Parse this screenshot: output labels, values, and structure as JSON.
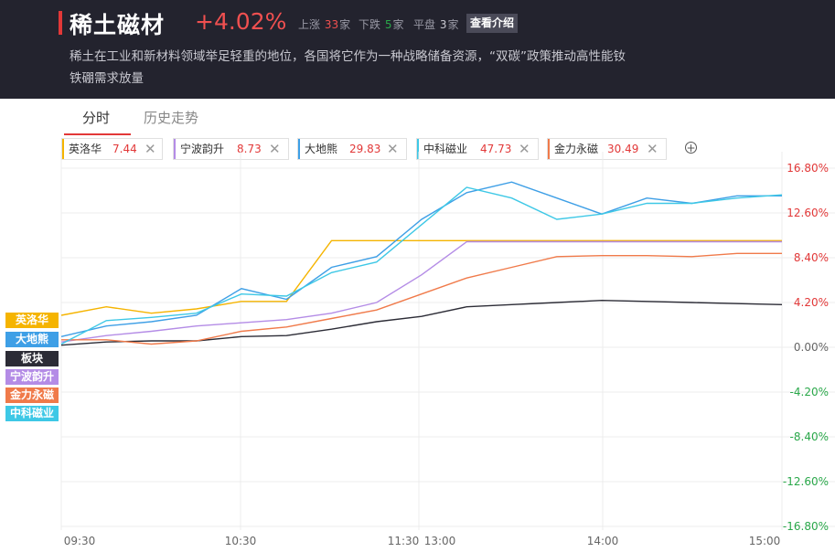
{
  "header": {
    "title": "稀土磁材",
    "change_pct": "+4.02%",
    "up_label": "上涨",
    "up_count": "33",
    "down_label": "下跌",
    "down_count": "5",
    "flat_label": "平盘",
    "flat_count": "3",
    "unit": "家",
    "intro_button": "查看介绍",
    "description": "稀土在工业和新材料领域举足轻重的地位，各国将它作为一种战略储备资源，“双碳”政策推动高性能钕铁硼需求放量"
  },
  "tabs": [
    {
      "label": "分时",
      "active": true
    },
    {
      "label": "历史走势",
      "active": false
    }
  ],
  "stocks": [
    {
      "name": "英洛华",
      "price": "7.44",
      "color": "#f5b400"
    },
    {
      "name": "宁波韵升",
      "price": "8.73",
      "color": "#b48ce6"
    },
    {
      "name": "大地熊",
      "price": "29.83",
      "color": "#3e9fe6"
    },
    {
      "name": "中科磁业",
      "price": "47.73",
      "color": "#3ec8e6"
    },
    {
      "name": "金力永磁",
      "price": "30.49",
      "color": "#f07a4a"
    }
  ],
  "close_icon": "close-icon",
  "add_icon": "add-circle-icon",
  "legend": [
    {
      "label": "英洛华",
      "color": "#f5b400"
    },
    {
      "label": "大地熊",
      "color": "#3e9fe6"
    },
    {
      "label": "板块",
      "color": "#2c2c36"
    },
    {
      "label": "宁波韵升",
      "color": "#b48ce6"
    },
    {
      "label": "金力永磁",
      "color": "#f07a4a"
    },
    {
      "label": "中科磁业",
      "color": "#3ec8e6"
    }
  ],
  "chart_data": {
    "type": "line",
    "y_tick_labels": [
      "16.80%",
      "12.60%",
      "8.40%",
      "4.20%",
      "0.00%",
      "-4.20%",
      "-8.40%",
      "-12.60%",
      "-16.80%"
    ],
    "y_ticks": [
      16.8,
      12.6,
      8.4,
      4.2,
      0,
      -4.2,
      -8.4,
      -12.6,
      -16.8
    ],
    "ylim": [
      -16.8,
      16.8
    ],
    "x_tick_labels": [
      "09:30",
      "10:30",
      "11:30",
      "13:00",
      "14:00",
      "15:00"
    ],
    "x": [
      "09:30",
      "09:45",
      "10:00",
      "10:15",
      "10:30",
      "10:45",
      "11:00",
      "11:15",
      "11:30/13:00",
      "13:15",
      "13:30",
      "13:45",
      "14:00",
      "14:15",
      "14:30",
      "14:45",
      "15:00"
    ],
    "colors": {
      "up": "#e23838",
      "zero": "#666666",
      "down": "#2aa84a"
    },
    "series": [
      {
        "name": "板块",
        "color": "#2c2c36",
        "values": [
          0.2,
          0.5,
          0.6,
          0.6,
          1.0,
          1.1,
          1.7,
          2.4,
          2.9,
          3.8,
          4.0,
          4.2,
          4.4,
          4.3,
          4.2,
          4.1,
          4.0
        ]
      },
      {
        "name": "英洛华",
        "color": "#f5b400",
        "values": [
          3.0,
          3.8,
          3.2,
          3.6,
          4.3,
          4.3,
          10.0,
          10.0,
          10.0,
          10.0,
          10.0,
          10.0,
          10.0,
          10.0,
          10.0,
          10.0,
          10.0
        ]
      },
      {
        "name": "宁波韵升",
        "color": "#b48ce6",
        "values": [
          0.5,
          1.1,
          1.5,
          2.0,
          2.3,
          2.6,
          3.2,
          4.2,
          6.8,
          9.9,
          9.9,
          9.9,
          9.9,
          9.9,
          9.9,
          9.9,
          9.9
        ]
      },
      {
        "name": "金力永磁",
        "color": "#f07a4a",
        "values": [
          0.7,
          0.7,
          0.3,
          0.6,
          1.5,
          1.9,
          2.7,
          3.5,
          5.0,
          6.5,
          7.5,
          8.5,
          8.6,
          8.6,
          8.5,
          8.8,
          8.8
        ]
      },
      {
        "name": "大地熊",
        "color": "#3e9fe6",
        "values": [
          1.0,
          2.0,
          2.4,
          3.0,
          5.5,
          4.5,
          7.5,
          8.5,
          12.0,
          14.5,
          15.5,
          14.0,
          12.5,
          14.0,
          13.5,
          14.2,
          14.2
        ]
      },
      {
        "name": "中科磁业",
        "color": "#3ec8e6",
        "values": [
          0.3,
          2.5,
          2.8,
          3.2,
          5.0,
          4.8,
          7.0,
          8.0,
          11.5,
          15.0,
          14.0,
          12.0,
          12.5,
          13.5,
          13.5,
          14.0,
          14.3
        ]
      }
    ]
  }
}
